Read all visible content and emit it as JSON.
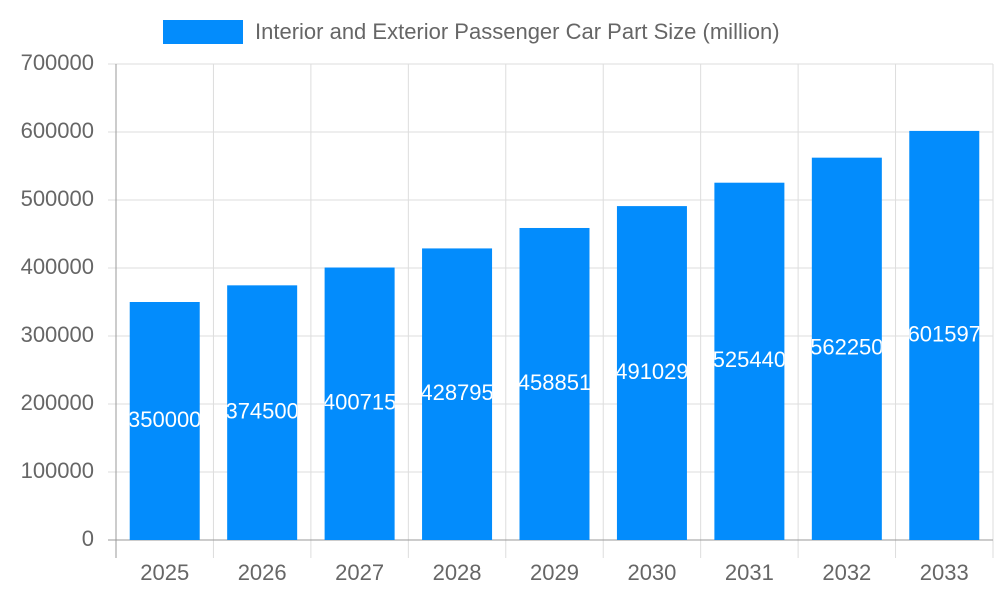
{
  "chart_data": {
    "type": "bar",
    "categories": [
      "2025",
      "2026",
      "2027",
      "2028",
      "2029",
      "2030",
      "2031",
      "2032",
      "2033"
    ],
    "series": [
      {
        "name": "Interior and Exterior Passenger Car Part Size (million)",
        "color": "#038cfc",
        "values": [
          350000,
          374500,
          400715,
          428795,
          458851,
          491029,
          525440,
          562250,
          601597
        ]
      }
    ],
    "ylim": [
      0,
      700000
    ],
    "yticks": [
      0,
      100000,
      200000,
      300000,
      400000,
      500000,
      600000,
      700000
    ],
    "grid": true,
    "legend": "top"
  }
}
